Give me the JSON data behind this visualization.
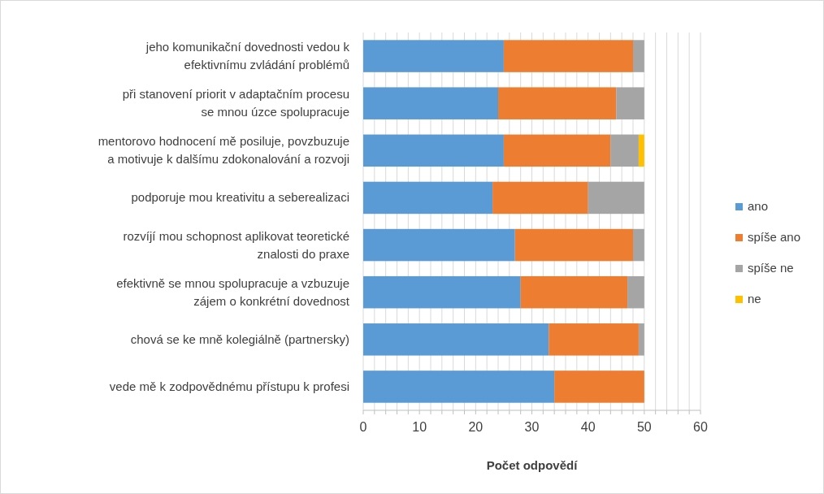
{
  "chart_data": {
    "type": "bar",
    "orientation": "horizontal",
    "stacked": true,
    "categories": [
      "jeho komunikační dovednosti vedou k efektivnímu zvládání problémů",
      "při stanovení priorit v adaptačním procesu se mnou úzce spolupracuje",
      "mentorovo hodnocení mě posiluje, povzbuzuje a motivuje k dalšímu zdokonalování a rozvoji",
      "podporuje mou kreativitu a seberealizaci",
      "rozvíjí mou schopnost aplikovat teoretické znalosti do praxe",
      "efektivně se mnou spolupracuje a vzbuzuje zájem o konkrétní dovednost",
      "chová se ke mně kolegiálně (partnersky)",
      "vede mě k zodpovědnému přístupu k profesi"
    ],
    "series": [
      {
        "name": "ano",
        "color": "#5b9bd5",
        "values": [
          25,
          24,
          25,
          23,
          27,
          28,
          33,
          34
        ]
      },
      {
        "name": "spíše ano",
        "color": "#ed7d31",
        "values": [
          23,
          21,
          19,
          17,
          21,
          19,
          16,
          16
        ]
      },
      {
        "name": "spíše ne",
        "color": "#a5a5a5",
        "values": [
          2,
          5,
          5,
          10,
          2,
          3,
          1,
          0
        ]
      },
      {
        "name": "ne",
        "color": "#ffc000",
        "values": [
          0,
          0,
          1,
          0,
          0,
          0,
          0,
          0
        ]
      }
    ],
    "xlabel": "Počet odpovědí",
    "xlim": [
      0,
      60
    ],
    "xticks": [
      0,
      {
        "value": 2,
        "label": null
      },
      {
        "value": 4,
        "label": null
      },
      {
        "value": 6,
        "label": null
      },
      {
        "value": 8,
        "label": null
      },
      10,
      {
        "value": 12,
        "label": null
      },
      {
        "value": 14,
        "label": null
      },
      {
        "value": 16,
        "label": null
      },
      {
        "value": 18,
        "label": null
      },
      20,
      {
        "value": 22,
        "label": null
      },
      {
        "value": 24,
        "label": null
      },
      {
        "value": 26,
        "label": null
      },
      {
        "value": 28,
        "label": null
      },
      30,
      {
        "value": 32,
        "label": null
      },
      {
        "value": 34,
        "label": null
      },
      {
        "value": 36,
        "label": null
      },
      {
        "value": 38,
        "label": null
      },
      40,
      {
        "value": 42,
        "label": null
      },
      {
        "value": 44,
        "label": null
      },
      {
        "value": 46,
        "label": null
      },
      {
        "value": 48,
        "label": null
      },
      50,
      {
        "value": 52,
        "label": null
      },
      {
        "value": 54,
        "label": null
      },
      {
        "value": 56,
        "label": null
      },
      {
        "value": 58,
        "label": null
      },
      60
    ],
    "grid": "x",
    "legend": "right"
  }
}
